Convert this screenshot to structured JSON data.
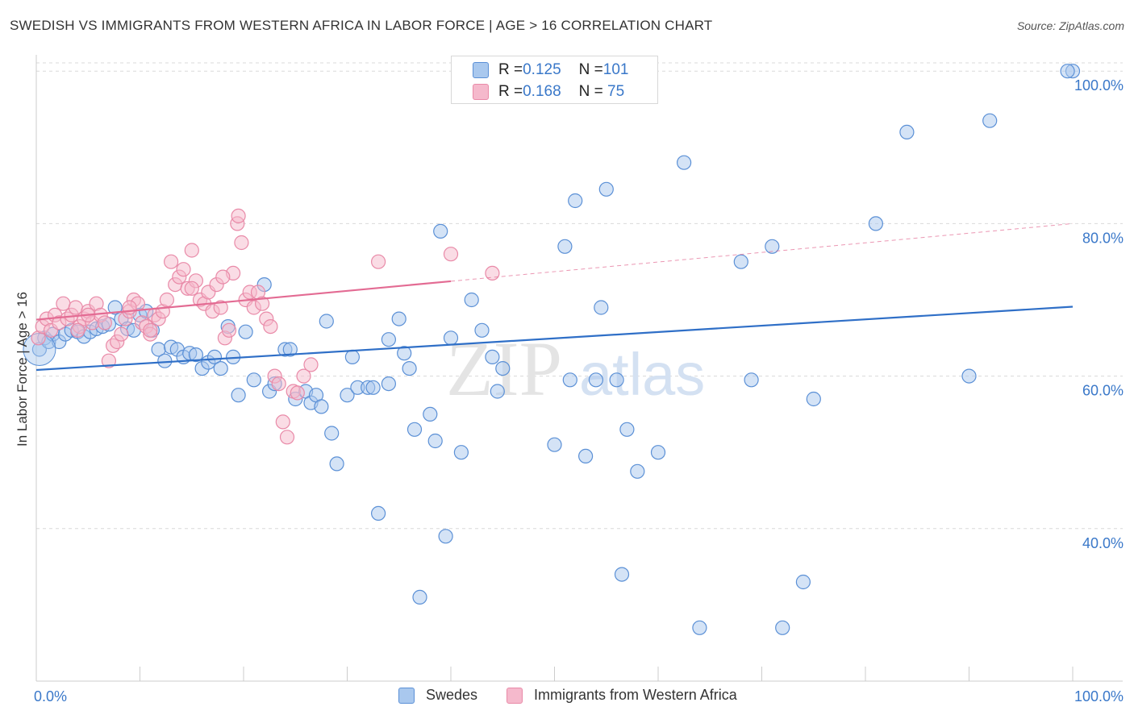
{
  "title": "SWEDISH VS IMMIGRANTS FROM WESTERN AFRICA IN LABOR FORCE | AGE > 16 CORRELATION CHART",
  "source": "Source: ZipAtlas.com",
  "watermark": {
    "zip": "ZIP",
    "atlas": "atlas"
  },
  "legend_top": {
    "rows": [
      {
        "r_label": "R = ",
        "r_value": "0.125",
        "n_label": "N = ",
        "n_value": "101"
      },
      {
        "r_label": "R = ",
        "r_value": "0.168",
        "n_label": "N = ",
        "n_value": " 75"
      }
    ]
  },
  "colors": {
    "blue_fill": "#a9c8ee",
    "blue_stroke": "#5b90d6",
    "blue_line": "#2f6fc7",
    "pink_fill": "#f5b9cc",
    "pink_stroke": "#e98aa8",
    "pink_line": "#e36b93",
    "axis_text": "#3a78c9",
    "grid": "#d9d9d9"
  },
  "chart_data": {
    "type": "scatter",
    "title": "SWEDISH VS IMMIGRANTS FROM WESTERN AFRICA IN LABOR FORCE | AGE > 16 CORRELATION CHART",
    "xlabel": "",
    "ylabel": "In Labor Force | Age > 16",
    "xlim": [
      0,
      100
    ],
    "ylim": [
      20,
      101
    ],
    "x_tick_labels": [
      "0.0%",
      "100.0%"
    ],
    "y_ticks": [
      40,
      60,
      80,
      100
    ],
    "y_tick_labels": [
      "40.0%",
      "60.0%",
      "80.0%",
      "100.0%"
    ],
    "grid": true,
    "legend_position": "bottom",
    "series": [
      {
        "name": "Swedes",
        "color": "#a9c8ee",
        "r": "0.125",
        "n": "101",
        "trend": {
          "x": [
            0,
            100
          ],
          "y": [
            60.8,
            69.1
          ],
          "dashed_from": null
        },
        "points": [
          [
            0.3,
            63.5
          ],
          [
            0.8,
            65
          ],
          [
            1.2,
            64.5
          ],
          [
            1.6,
            65.5
          ],
          [
            2.2,
            64.5
          ],
          [
            2.8,
            65.5
          ],
          [
            3.4,
            66
          ],
          [
            4,
            65.8
          ],
          [
            4.6,
            65.2
          ],
          [
            5.2,
            65.8
          ],
          [
            5.8,
            66.2
          ],
          [
            6.4,
            66.5
          ],
          [
            7,
            66.8
          ],
          [
            7.6,
            69
          ],
          [
            8.2,
            67.5
          ],
          [
            8.8,
            66.2
          ],
          [
            9.4,
            66
          ],
          [
            10,
            68
          ],
          [
            10.6,
            68.5
          ],
          [
            11.2,
            66
          ],
          [
            11.8,
            63.5
          ],
          [
            12.4,
            62
          ],
          [
            13,
            63.8
          ],
          [
            13.6,
            63.5
          ],
          [
            14.2,
            62.5
          ],
          [
            14.8,
            63
          ],
          [
            15.4,
            62.8
          ],
          [
            16,
            61
          ],
          [
            16.6,
            61.8
          ],
          [
            17.2,
            62.5
          ],
          [
            17.8,
            61
          ],
          [
            18.5,
            66.5
          ],
          [
            19,
            62.5
          ],
          [
            19.5,
            57.5
          ],
          [
            20.2,
            65.8
          ],
          [
            21,
            59.5
          ],
          [
            22,
            72
          ],
          [
            22.5,
            58
          ],
          [
            23,
            59
          ],
          [
            24,
            63.5
          ],
          [
            24.5,
            63.5
          ],
          [
            25,
            57
          ],
          [
            26,
            58
          ],
          [
            26.5,
            56.5
          ],
          [
            27,
            57.5
          ],
          [
            27.5,
            56
          ],
          [
            28,
            67.2
          ],
          [
            28.5,
            52.5
          ],
          [
            29,
            48.5
          ],
          [
            30,
            57.5
          ],
          [
            30.5,
            62.5
          ],
          [
            31,
            58.5
          ],
          [
            32,
            58.5
          ],
          [
            32.5,
            58.5
          ],
          [
            33,
            42
          ],
          [
            34,
            64.8
          ],
          [
            34,
            59
          ],
          [
            35,
            67.5
          ],
          [
            35.5,
            63
          ],
          [
            36,
            61
          ],
          [
            36.5,
            53
          ],
          [
            37,
            31
          ],
          [
            38,
            55
          ],
          [
            38.5,
            51.5
          ],
          [
            39,
            79
          ],
          [
            39.5,
            39
          ],
          [
            40,
            65
          ],
          [
            41,
            50
          ],
          [
            42,
            70
          ],
          [
            43,
            66
          ],
          [
            44,
            62.5
          ],
          [
            44.5,
            58
          ],
          [
            45,
            61
          ],
          [
            48,
            100
          ],
          [
            50,
            51
          ],
          [
            51,
            77
          ],
          [
            51.5,
            59.5
          ],
          [
            52,
            83
          ],
          [
            53,
            49.5
          ],
          [
            54,
            59.5
          ],
          [
            54.5,
            69
          ],
          [
            55,
            84.5
          ],
          [
            56,
            59.5
          ],
          [
            56.5,
            34
          ],
          [
            57,
            53
          ],
          [
            58,
            47.5
          ],
          [
            60,
            50
          ],
          [
            62.5,
            88
          ],
          [
            64,
            27
          ],
          [
            68,
            75
          ],
          [
            69,
            59.5
          ],
          [
            71,
            77
          ],
          [
            72,
            27
          ],
          [
            74,
            33
          ],
          [
            75,
            57
          ],
          [
            81,
            80
          ],
          [
            84,
            92
          ],
          [
            90,
            60
          ],
          [
            92,
            93.5
          ],
          [
            100,
            100
          ],
          [
            99.5,
            100
          ]
        ]
      },
      {
        "name": "Immigrants from Western Africa",
        "color": "#f5b9cc",
        "r": "0.168",
        "n": "75",
        "trend": {
          "x": [
            0,
            100
          ],
          "y": [
            67.4,
            80.0
          ],
          "solid_until_x": 40
        },
        "points": [
          [
            0.2,
            65
          ],
          [
            0.6,
            66.5
          ],
          [
            1,
            67.5
          ],
          [
            1.4,
            66
          ],
          [
            1.8,
            68
          ],
          [
            2.2,
            67
          ],
          [
            2.6,
            69.5
          ],
          [
            3,
            67.5
          ],
          [
            3.4,
            68
          ],
          [
            3.8,
            69
          ],
          [
            4.2,
            66.5
          ],
          [
            4.6,
            67.5
          ],
          [
            5,
            68.5
          ],
          [
            5.4,
            67
          ],
          [
            5.8,
            69.5
          ],
          [
            6.2,
            68
          ],
          [
            6.6,
            67
          ],
          [
            7,
            62
          ],
          [
            7.4,
            64
          ],
          [
            7.8,
            64.5
          ],
          [
            8.2,
            65.5
          ],
          [
            8.6,
            67.5
          ],
          [
            9,
            68.5
          ],
          [
            9.4,
            70
          ],
          [
            9.8,
            69.5
          ],
          [
            10.2,
            67
          ],
          [
            10.6,
            66.5
          ],
          [
            11,
            65.5
          ],
          [
            11.4,
            68
          ],
          [
            11.8,
            67.5
          ],
          [
            12.2,
            68.5
          ],
          [
            12.6,
            70
          ],
          [
            13,
            75
          ],
          [
            13.4,
            72
          ],
          [
            13.8,
            73
          ],
          [
            14.2,
            74
          ],
          [
            14.6,
            71.5
          ],
          [
            15,
            76.5
          ],
          [
            15.4,
            72.5
          ],
          [
            15.8,
            70
          ],
          [
            16.2,
            69.5
          ],
          [
            16.6,
            71
          ],
          [
            17,
            68.5
          ],
          [
            17.4,
            72
          ],
          [
            17.8,
            69
          ],
          [
            18.2,
            65
          ],
          [
            18.6,
            66
          ],
          [
            19,
            73.5
          ],
          [
            19.4,
            80
          ],
          [
            19.8,
            77.5
          ],
          [
            20.2,
            70
          ],
          [
            20.6,
            71
          ],
          [
            21,
            69
          ],
          [
            21.4,
            71
          ],
          [
            21.8,
            69.5
          ],
          [
            22.2,
            67.5
          ],
          [
            22.6,
            66.5
          ],
          [
            23,
            60
          ],
          [
            23.4,
            59
          ],
          [
            23.8,
            54
          ],
          [
            24.2,
            52
          ],
          [
            24.8,
            58
          ],
          [
            25.2,
            57.8
          ],
          [
            25.8,
            60
          ],
          [
            26.5,
            61.5
          ],
          [
            18,
            73
          ],
          [
            19.5,
            81
          ],
          [
            15,
            71.5
          ],
          [
            9,
            69
          ],
          [
            11,
            66
          ],
          [
            5,
            68
          ],
          [
            4,
            66
          ],
          [
            33,
            75
          ],
          [
            40,
            76
          ],
          [
            44,
            73.5
          ]
        ]
      }
    ]
  },
  "legend_bottom": [
    {
      "label": "Swedes"
    },
    {
      "label": "Immigrants from Western Africa"
    }
  ]
}
